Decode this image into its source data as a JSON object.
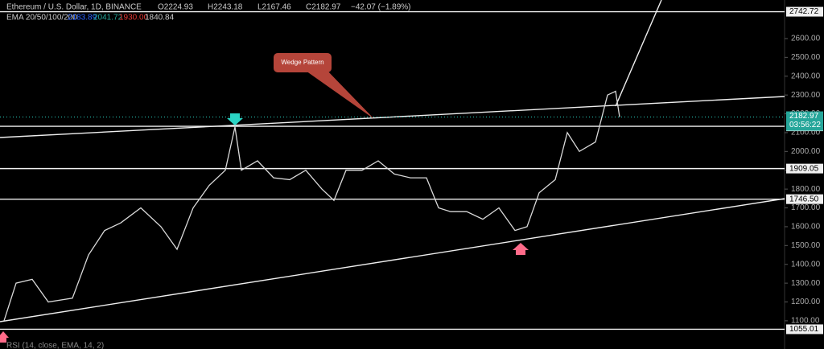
{
  "header": {
    "symbol": "Ethereum / U.S. Dollar, 1D, BINANCE",
    "open": "O2224.93",
    "high": "H2243.18",
    "low": "L2167.46",
    "close": "C2182.97",
    "change": "−42.07 (−1.89%)",
    "ema_label": "EMA 20/50/100/200",
    "ema_values": [
      "2183.89",
      "2041.72",
      "1930.00",
      "1840.84"
    ],
    "rsi_label": "RSI (14, close, EMA, 14, 2)"
  },
  "annotation": "Wedge Pattern",
  "chart_data": {
    "type": "line",
    "color": "#d9d9d9",
    "x": [
      5,
      20,
      40,
      60,
      90,
      110,
      130,
      150,
      175,
      200,
      220,
      240,
      260,
      280,
      292,
      300,
      320,
      340,
      360,
      380,
      400,
      415,
      430,
      450,
      470,
      490,
      510,
      530,
      545,
      560,
      580,
      600,
      620,
      640,
      655,
      670,
      690,
      705,
      720,
      740,
      755,
      765,
      770
    ],
    "values": [
      1100,
      1300,
      1320,
      1200,
      1220,
      1450,
      1580,
      1620,
      1700,
      1600,
      1480,
      1700,
      1820,
      1900,
      2130,
      1900,
      1950,
      1860,
      1850,
      1900,
      1800,
      1740,
      1900,
      1900,
      1950,
      1880,
      1860,
      1860,
      1700,
      1680,
      1680,
      1640,
      1700,
      1580,
      1600,
      1780,
      1850,
      2100,
      2000,
      2050,
      2300,
      2320,
      2183
    ],
    "xlim": [
      0,
      975
    ],
    "ylim": [
      950,
      2805
    ],
    "yticks": [
      {
        "value": 1100,
        "label": "1100.00"
      },
      {
        "value": 1200,
        "label": "1200.00"
      },
      {
        "value": 1300,
        "label": "1300.00"
      },
      {
        "value": 1400,
        "label": "1400.00"
      },
      {
        "value": 1500,
        "label": "1500.00"
      },
      {
        "value": 1600,
        "label": "1600.00"
      },
      {
        "value": 1700,
        "label": "1700.00"
      },
      {
        "value": 1800,
        "label": "1800.00"
      },
      {
        "value": 1900,
        "label": "1900.00"
      },
      {
        "value": 2000,
        "label": "2000.00"
      },
      {
        "value": 2100,
        "label": "2100.00"
      },
      {
        "value": 2200,
        "label": "2200.00"
      },
      {
        "value": 2300,
        "label": "2300.00"
      },
      {
        "value": 2400,
        "label": "2400.00"
      },
      {
        "value": 2500,
        "label": "2500.00"
      },
      {
        "value": 2600,
        "label": "2600.00"
      }
    ],
    "levels": [
      2742.72,
      2133.49,
      1909.05,
      {
        "value": 1746.5,
        "label": "1746.50"
      },
      1055.01
    ],
    "current_price": 2182.97,
    "countdown": "03:56:22"
  }
}
